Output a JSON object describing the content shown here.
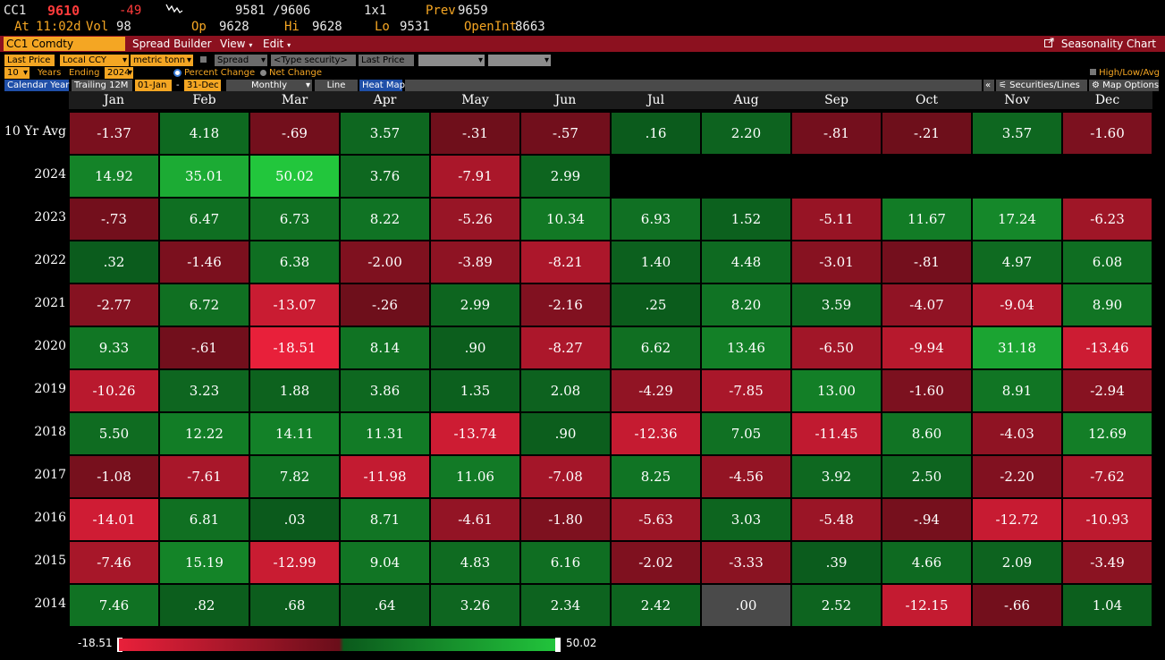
{
  "quote": {
    "ticker": "CC1",
    "last": "9610",
    "change": "-49",
    "bid_ask": "9581 /9606",
    "size": "1x1",
    "prev_label": "Prev",
    "prev": "9659",
    "at_label": "At",
    "at_time": "11:02d",
    "vol_label": "Vol",
    "vol": "98",
    "op_label": "Op",
    "op": "9628",
    "hi_label": "Hi",
    "hi": "9628",
    "lo_label": "Lo",
    "lo": "9531",
    "oi_label": "OpenInt",
    "oi": "8663"
  },
  "menubar": {
    "security": "CC1 Comdty",
    "spread_builder": "Spread Builder",
    "view": "View",
    "edit": "Edit",
    "seasonality_chart": "Seasonality Chart"
  },
  "toolbar1": {
    "price_type": "Last Price",
    "currency": "Local CCY",
    "unit": "metric tonn",
    "spread": "Spread",
    "type_security": "<Type security>",
    "price_type2": "Last Price"
  },
  "toolbar2": {
    "years": "10",
    "years_label": "Years",
    "ending_label": "Ending",
    "ending_year": "2024",
    "percent_change": "Percent Change",
    "net_change": "Net Change",
    "high_low_avg": "High/Low/Avg"
  },
  "toolbar3": {
    "calendar_year": "Calendar Year",
    "trailing": "Trailing 12M",
    "start": "01-Jan",
    "dash": "-",
    "end": "31-Dec",
    "period": "Monthly",
    "line": "Line",
    "heat_map": "Heat Map",
    "collapse": "«",
    "securities_lines": "Securities/Lines",
    "map_options": "Map Options"
  },
  "heatmap": {
    "months": [
      "Jan",
      "Feb",
      "Mar",
      "Apr",
      "May",
      "Jun",
      "Jul",
      "Aug",
      "Sep",
      "Oct",
      "Nov",
      "Dec"
    ],
    "rows": [
      {
        "label": "10 Yr Avg",
        "values": [
          "-1.37",
          "4.18",
          "-.69",
          "3.57",
          "-.31",
          "-.57",
          ".16",
          "2.20",
          "-.81",
          "-.21",
          "3.57",
          "-1.60"
        ]
      },
      {
        "label": "2024",
        "values": [
          "14.92",
          "35.01",
          "50.02",
          "3.76",
          "-7.91",
          "2.99",
          "",
          "",
          "",
          "",
          "",
          ""
        ]
      },
      {
        "label": "2023",
        "values": [
          "-.73",
          "6.47",
          "6.73",
          "8.22",
          "-5.26",
          "10.34",
          "6.93",
          "1.52",
          "-5.11",
          "11.67",
          "17.24",
          "-6.23"
        ]
      },
      {
        "label": "2022",
        "values": [
          ".32",
          "-1.46",
          "6.38",
          "-2.00",
          "-3.89",
          "-8.21",
          "1.40",
          "4.48",
          "-3.01",
          "-.81",
          "4.97",
          "6.08"
        ]
      },
      {
        "label": "2021",
        "values": [
          "-2.77",
          "6.72",
          "-13.07",
          "-.26",
          "2.99",
          "-2.16",
          ".25",
          "8.20",
          "3.59",
          "-4.07",
          "-9.04",
          "8.90"
        ]
      },
      {
        "label": "2020",
        "values": [
          "9.33",
          "-.61",
          "-18.51",
          "8.14",
          ".90",
          "-8.27",
          "6.62",
          "13.46",
          "-6.50",
          "-9.94",
          "31.18",
          "-13.46"
        ]
      },
      {
        "label": "2019",
        "values": [
          "-10.26",
          "3.23",
          "1.88",
          "3.86",
          "1.35",
          "2.08",
          "-4.29",
          "-7.85",
          "13.00",
          "-1.60",
          "8.91",
          "-2.94"
        ]
      },
      {
        "label": "2018",
        "values": [
          "5.50",
          "12.22",
          "14.11",
          "11.31",
          "-13.74",
          ".90",
          "-12.36",
          "7.05",
          "-11.45",
          "8.60",
          "-4.03",
          "12.69"
        ]
      },
      {
        "label": "2017",
        "values": [
          "-1.08",
          "-7.61",
          "7.82",
          "-11.98",
          "11.06",
          "-7.08",
          "8.25",
          "-4.56",
          "3.92",
          "2.50",
          "-2.20",
          "-7.62"
        ]
      },
      {
        "label": "2016",
        "values": [
          "-14.01",
          "6.81",
          ".03",
          "8.71",
          "-4.61",
          "-1.80",
          "-5.63",
          "3.03",
          "-5.48",
          "-.94",
          "-12.72",
          "-10.93"
        ]
      },
      {
        "label": "2015",
        "values": [
          "-7.46",
          "15.19",
          "-12.99",
          "9.04",
          "4.83",
          "6.16",
          "-2.02",
          "-3.33",
          ".39",
          "4.66",
          "2.09",
          "-3.49"
        ]
      },
      {
        "label": "2014",
        "values": [
          "7.46",
          ".82",
          ".68",
          ".64",
          "3.26",
          "2.34",
          "2.42",
          ".00",
          "2.52",
          "-12.15",
          "-.66",
          "1.04"
        ]
      }
    ]
  },
  "legend": {
    "min": "-18.51",
    "max": "50.02"
  },
  "colors": {
    "negative_strong": "#e8203a",
    "negative_weak": "#6a0e1a",
    "positive_weak": "#0b5a1c",
    "positive_strong": "#22c63c",
    "zero": "#4a4a4a",
    "menubar": "#8c111f",
    "accent": "#f4a623"
  }
}
